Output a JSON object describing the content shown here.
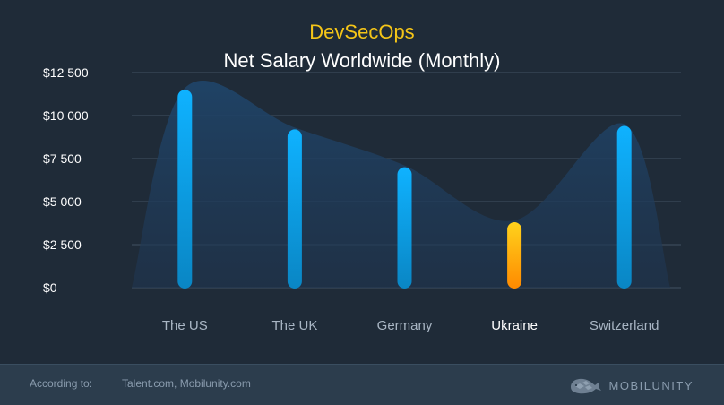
{
  "chart_data": {
    "type": "bar",
    "title": "Net Salary Worldwide (Monthly)",
    "subtitle": "DevSecOps",
    "categories": [
      "The US",
      "The UK",
      "Germany",
      "Ukraine",
      "Switzerland"
    ],
    "values": [
      11500,
      9200,
      7000,
      3800,
      9400
    ],
    "highlight_category": "Ukraine",
    "ylim": [
      0,
      12500
    ],
    "yticks": [
      0,
      2500,
      5000,
      7500,
      10000,
      12500
    ],
    "ytick_labels": [
      "$0",
      "$2 500",
      "$5 000",
      "$7 500",
      "$10 000",
      "$12 500"
    ],
    "grid": true,
    "xlabel": "",
    "ylabel": ""
  },
  "footer": {
    "label": "According to:",
    "source": "Talent.com, Mobilunity.com",
    "brand": "MOBILUNITY"
  },
  "colors": {
    "background": "#1f2b38",
    "footer_background": "#2c3d4d",
    "subtitle": "#f5c518",
    "bar_top": "#0fb2ff",
    "bar_bottom": "#0a86c4",
    "highlight_top": "#ffd21c",
    "highlight_bottom": "#ff8a00",
    "grid": "#3a4a5a",
    "area_fill": "#203d5c",
    "tick_label": "#ffffff",
    "category_label": "#a9b6c4",
    "highlight_label": "#ffffff"
  }
}
